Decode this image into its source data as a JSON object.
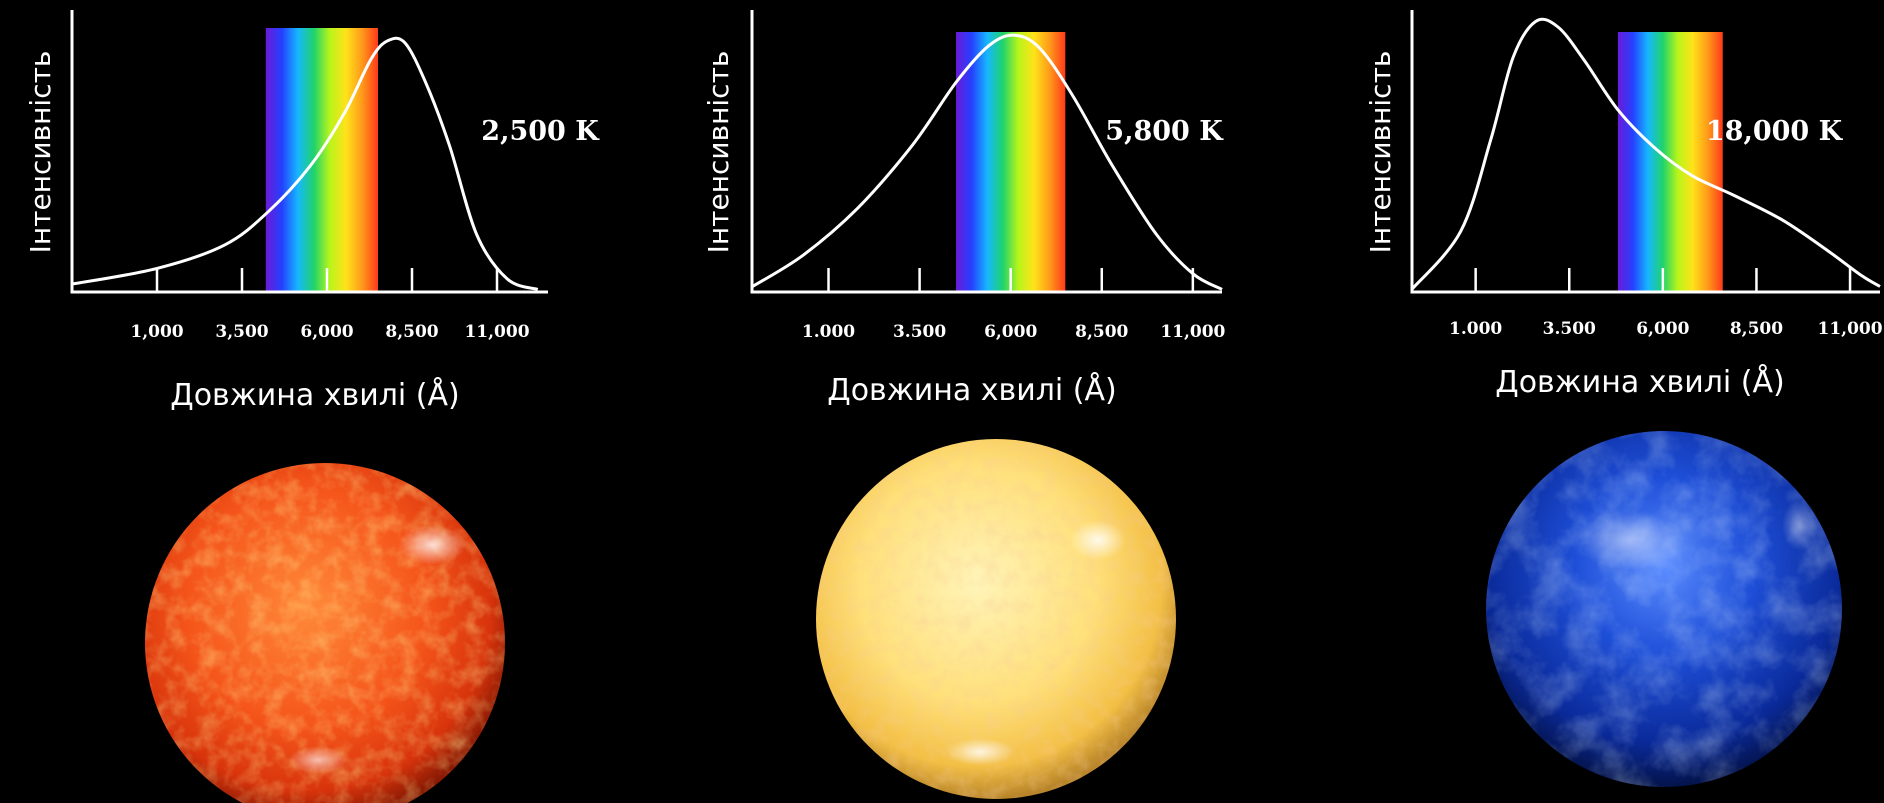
{
  "colors": {
    "background": "#000000",
    "axis": "#ffffff",
    "curve": "#ffffff",
    "spectrum": [
      "#6a1bd8",
      "#2540ff",
      "#16b7ff",
      "#1fd36b",
      "#b8f51a",
      "#ffe21a",
      "#ff9a1a",
      "#ff3a1a"
    ]
  },
  "chart_data": [
    {
      "type": "line",
      "ylabel": "Інтенсивність",
      "xlabel": "Довжина хвилі (Å)",
      "annotation": "2,500 K",
      "x_ticks": [
        "1,000",
        "3,500",
        "6,000",
        "8,500",
        "11,000"
      ],
      "x_tick_values": [
        1000,
        3500,
        6000,
        8500,
        11000
      ],
      "xlim": [
        -1500,
        12500
      ],
      "ylim": [
        0,
        1.0
      ],
      "visible_band": [
        4200,
        7500
      ],
      "x": [
        -1500,
        1000,
        3000,
        4300,
        5500,
        6500,
        7300,
        7800,
        8300,
        8900,
        9600,
        10400,
        11300,
        12200
      ],
      "y": [
        0.03,
        0.09,
        0.18,
        0.31,
        0.48,
        0.68,
        0.89,
        0.96,
        0.95,
        0.8,
        0.56,
        0.22,
        0.05,
        0.01
      ],
      "star_color": "red-orange"
    },
    {
      "type": "line",
      "ylabel": "Інтенсивність",
      "xlabel": "Довжина хвилі (Å)",
      "annotation": "5,800 K",
      "x_ticks": [
        "1.000",
        "3.500",
        "6,000",
        "8,500",
        "11,000"
      ],
      "x_tick_values": [
        1000,
        3500,
        6000,
        8500,
        11000
      ],
      "xlim": [
        -1100,
        11800
      ],
      "ylim": [
        0,
        1.0
      ],
      "visible_band": [
        4500,
        7500
      ],
      "x": [
        -1100,
        300,
        1800,
        3300,
        4500,
        5400,
        6100,
        6800,
        7700,
        8800,
        10000,
        11000,
        11800
      ],
      "y": [
        0.02,
        0.14,
        0.32,
        0.56,
        0.8,
        0.94,
        0.98,
        0.93,
        0.75,
        0.48,
        0.22,
        0.07,
        0.01
      ],
      "star_color": "yellow"
    },
    {
      "type": "line",
      "ylabel": "Інтенсивність",
      "xlabel": "Довжина хвилі (Å)",
      "annotation": "18,000 K",
      "x_ticks": [
        "1.000",
        "3.500",
        "6,000",
        "8,500",
        "11,000"
      ],
      "x_tick_values": [
        1000,
        3500,
        6000,
        8500,
        11000
      ],
      "xlim": [
        -700,
        11800
      ],
      "ylim": [
        0,
        1.0
      ],
      "visible_band": [
        4800,
        7600
      ],
      "x": [
        -700,
        600,
        1400,
        2000,
        2600,
        3200,
        3900,
        4800,
        5800,
        6800,
        7900,
        9200,
        10400,
        11300,
        11800
      ],
      "y": [
        0.01,
        0.22,
        0.55,
        0.85,
        0.98,
        0.96,
        0.84,
        0.66,
        0.52,
        0.42,
        0.35,
        0.26,
        0.15,
        0.06,
        0.02
      ],
      "star_color": "blue"
    }
  ]
}
